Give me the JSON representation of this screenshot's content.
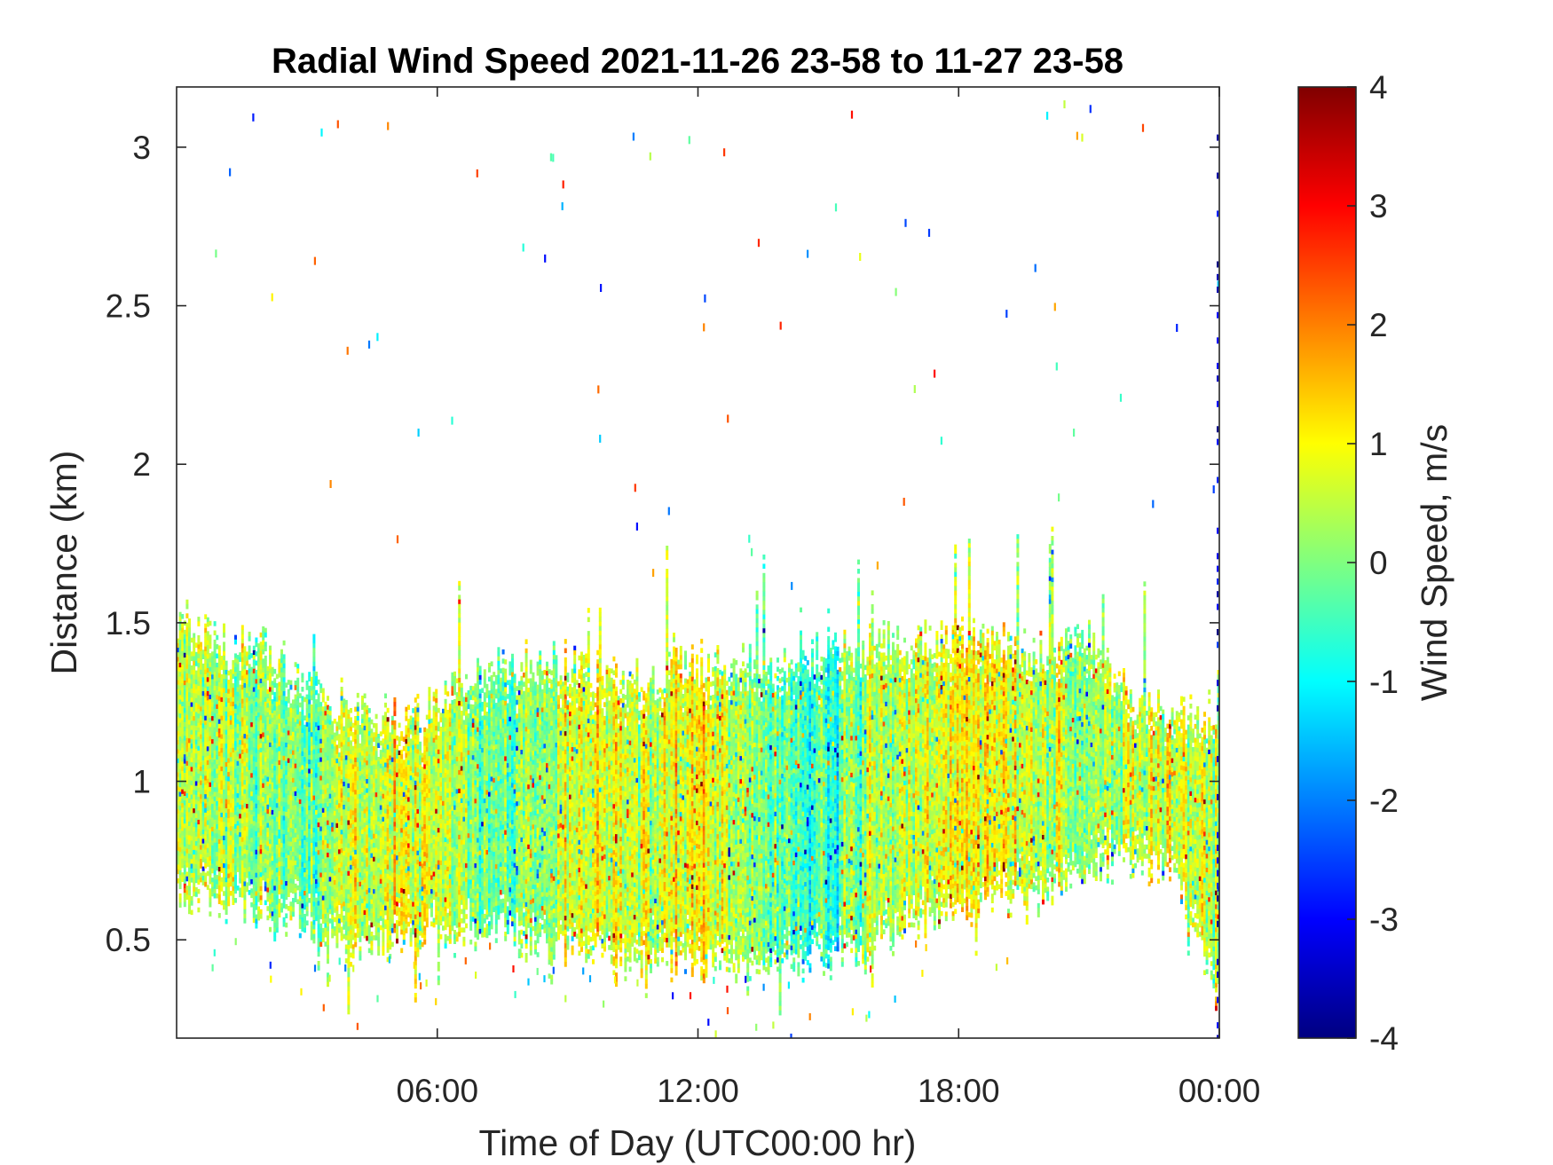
{
  "chart_data": {
    "type": "heatmap",
    "title": "Radial Wind Speed 2021-11-26 23-58 to 11-27 23-58",
    "xlabel": "Time of Day (UTC00:00 hr)",
    "ylabel": "Distance (km)",
    "xlim_hours": [
      0,
      24
    ],
    "x_tick_hours": [
      6,
      12,
      18,
      24
    ],
    "x_tick_labels": [
      "06:00",
      "12:00",
      "18:00",
      "00:00"
    ],
    "ylim": [
      0.19,
      3.19
    ],
    "y_ticks": [
      0.5,
      1,
      1.5,
      2,
      2.5,
      3
    ],
    "y_tick_labels": [
      "0.5",
      "1",
      "1.5",
      "2",
      "2.5",
      "3"
    ],
    "grid": false,
    "colorbar": {
      "label": "Wind Speed, m/s",
      "clim": [
        -4,
        4
      ],
      "ticks": [
        -4,
        -3,
        -2,
        -1,
        0,
        1,
        2,
        3,
        4
      ],
      "tick_labels": [
        "-4",
        "-3",
        "-2",
        "-1",
        "0",
        "1",
        "2",
        "3",
        "4"
      ],
      "colormap": "jet",
      "colormap_stops": [
        "#000080",
        "#0000ff",
        "#00ffff",
        "#ffff00",
        "#ff0000",
        "#800000"
      ]
    },
    "data_envelope": {
      "description_units": "hours vs km",
      "hours": [
        0,
        1,
        2,
        3,
        4,
        5,
        6,
        7,
        8,
        9,
        10,
        11,
        12,
        13,
        14,
        15,
        16,
        17,
        18,
        19,
        20,
        21,
        22,
        23,
        24
      ],
      "top_km": [
        1.52,
        1.45,
        1.42,
        1.32,
        1.24,
        1.2,
        1.25,
        1.35,
        1.38,
        1.38,
        1.33,
        1.35,
        1.38,
        1.38,
        1.36,
        1.42,
        1.44,
        1.45,
        1.47,
        1.44,
        1.42,
        1.45,
        1.28,
        1.24,
        1.22
      ],
      "bottom_km": [
        0.65,
        0.62,
        0.6,
        0.55,
        0.45,
        0.48,
        0.53,
        0.55,
        0.5,
        0.47,
        0.44,
        0.43,
        0.42,
        0.42,
        0.42,
        0.44,
        0.48,
        0.55,
        0.6,
        0.62,
        0.65,
        0.72,
        0.74,
        0.7,
        0.3
      ],
      "mean_speed_ms": [
        0.4,
        0.5,
        0.1,
        -0.2,
        0.5,
        0.8,
        0.5,
        -0.2,
        0.0,
        0.6,
        0.6,
        0.7,
        0.9,
        0.5,
        -0.6,
        -0.7,
        0.3,
        0.5,
        1.2,
        0.7,
        0.5,
        0.2,
        0.6,
        0.7,
        0.5
      ]
    }
  }
}
